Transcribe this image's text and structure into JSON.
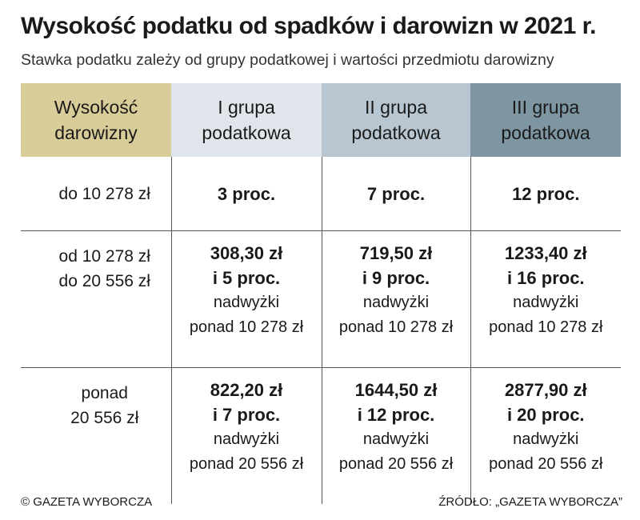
{
  "title": "Wysokość podatku od spadków i darowizn w 2021 r.",
  "subtitle": "Stawka podatku zależy od grupy podatkowej i wartości przedmiotu darowizny",
  "colors": {
    "col0_header": "#d8cc98",
    "col1_header": "#dfe5ea",
    "col2_header": "#b7c6d0",
    "col3_header": "#7e95a2"
  },
  "table": {
    "headers": [
      {
        "line1": "Wysokość",
        "line2": "darowizny"
      },
      {
        "line1": "I grupa",
        "line2": "podatkowa"
      },
      {
        "line1": "II grupa",
        "line2": "podatkowa"
      },
      {
        "line1": "III grupa",
        "line2": "podatkowa"
      }
    ],
    "rows": [
      {
        "label": [
          "do 10 278 zł"
        ],
        "cells": [
          {
            "bold": [
              "3 proc."
            ],
            "note": []
          },
          {
            "bold": [
              "7 proc."
            ],
            "note": []
          },
          {
            "bold": [
              "12 proc."
            ],
            "note": []
          }
        ]
      },
      {
        "label": [
          "od 10 278 zł",
          "do 20 556 zł"
        ],
        "cells": [
          {
            "bold": [
              "308,30 zł",
              "i 5 proc."
            ],
            "note": [
              "nadwyżki",
              "ponad 10 278 zł"
            ]
          },
          {
            "bold": [
              "719,50 zł",
              "i 9 proc."
            ],
            "note": [
              "nadwyżki",
              "ponad 10 278 zł"
            ]
          },
          {
            "bold": [
              "1233,40 zł",
              "i 16 proc."
            ],
            "note": [
              "nadwyżki",
              "ponad 10 278 zł"
            ]
          }
        ]
      },
      {
        "label": [
          "ponad",
          "20 556 zł"
        ],
        "cells": [
          {
            "bold": [
              "822,20 zł",
              "i 7 proc."
            ],
            "note": [
              "nadwyżki",
              "ponad 20 556 zł"
            ]
          },
          {
            "bold": [
              "1644,50 zł",
              "i 12 proc."
            ],
            "note": [
              "nadwyżki",
              "ponad 20 556 zł"
            ]
          },
          {
            "bold": [
              "2877,90 zł",
              "i 20 proc."
            ],
            "note": [
              "nadwyżki",
              "ponad 20 556 zł"
            ]
          }
        ]
      }
    ]
  },
  "footer": {
    "left": "© GAZETA WYBORCZA",
    "right": "ŹRÓDŁO: „GAZETA WYBORCZA”"
  }
}
